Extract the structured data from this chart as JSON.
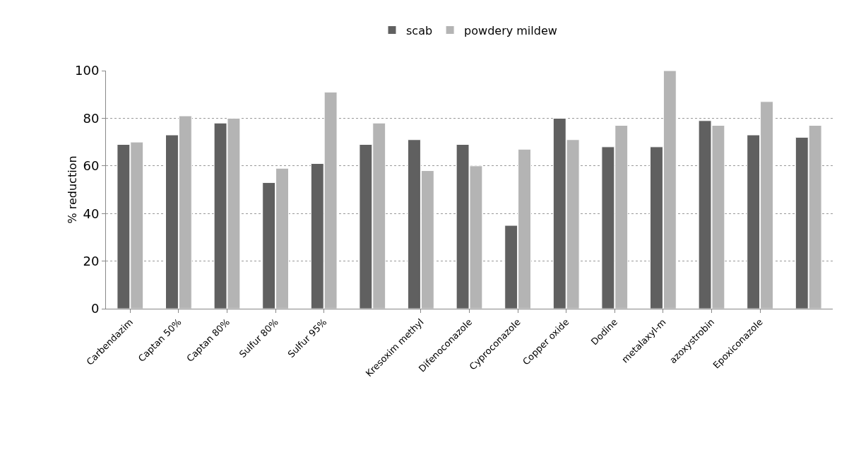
{
  "chart_data": {
    "type": "bar",
    "ylabel": "% reduction",
    "categories": [
      "Carbendazim",
      "Captan 50%",
      "Captan 80%",
      "Sulfur 80%",
      "Sulfur 95%",
      null,
      "Kresoxim methyl",
      "Difenoconazole",
      "Cyproconazole",
      "Copper oxide",
      "Dodine",
      "metalaxyl-m",
      "azoxystrobin",
      "Epoxiconazole",
      null
    ],
    "series": [
      {
        "name": "scab",
        "color": "#606060",
        "values": [
          69,
          73,
          78,
          53,
          61,
          69,
          71,
          69,
          35,
          80,
          68,
          68,
          79,
          73,
          72
        ]
      },
      {
        "name": "powdery mildew",
        "color": "#b4b4b4",
        "values": [
          70,
          81,
          80,
          59,
          91,
          78,
          58,
          60,
          67,
          71,
          77,
          100,
          77,
          87,
          77
        ]
      }
    ],
    "ylim": [
      0,
      100
    ],
    "yticks": [
      0,
      20,
      40,
      60,
      80,
      100
    ],
    "grid": "y",
    "legend": "top"
  }
}
